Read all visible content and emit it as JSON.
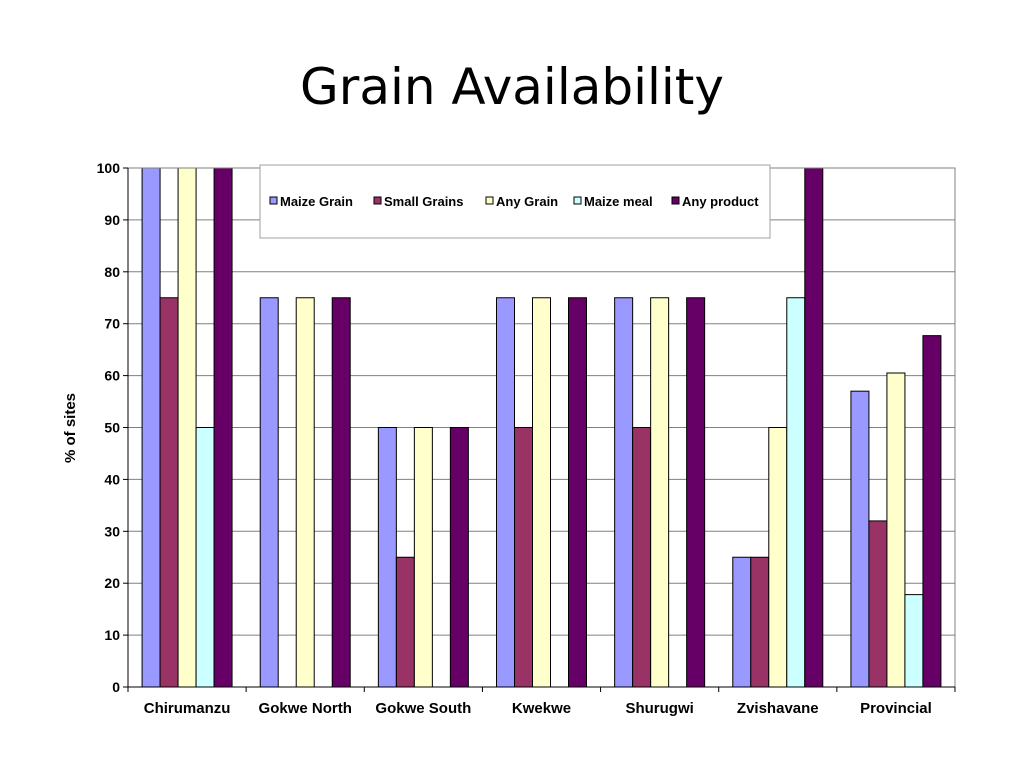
{
  "chart_data": {
    "type": "bar",
    "title": "Grain Availability",
    "xlabel": "",
    "ylabel": "% of sites",
    "ylim": [
      0,
      100
    ],
    "yticks": [
      0,
      10,
      20,
      30,
      40,
      50,
      60,
      70,
      80,
      90,
      100
    ],
    "grid": true,
    "legend_position": "top",
    "categories": [
      "Chirumanzu",
      "Gokwe North",
      "Gokwe South",
      "Kwekwe",
      "Shurugwi",
      "Zvishavane",
      "Provincial"
    ],
    "series": [
      {
        "name": "Maize Grain",
        "color": "#9999ff",
        "values": [
          100,
          75,
          50,
          75,
          75,
          25,
          57
        ]
      },
      {
        "name": "Small Grains",
        "color": "#993366",
        "values": [
          75,
          0,
          25,
          50,
          50,
          25,
          32
        ]
      },
      {
        "name": "Any Grain",
        "color": "#ffffcc",
        "values": [
          100,
          75,
          50,
          75,
          75,
          50,
          60.5
        ]
      },
      {
        "name": "Maize meal",
        "color": "#ccffff",
        "values": [
          50,
          0,
          0,
          0,
          0,
          75,
          17.8
        ]
      },
      {
        "name": "Any product",
        "color": "#660066",
        "values": [
          100,
          75,
          50,
          75,
          75,
          100,
          67.7
        ]
      }
    ]
  }
}
